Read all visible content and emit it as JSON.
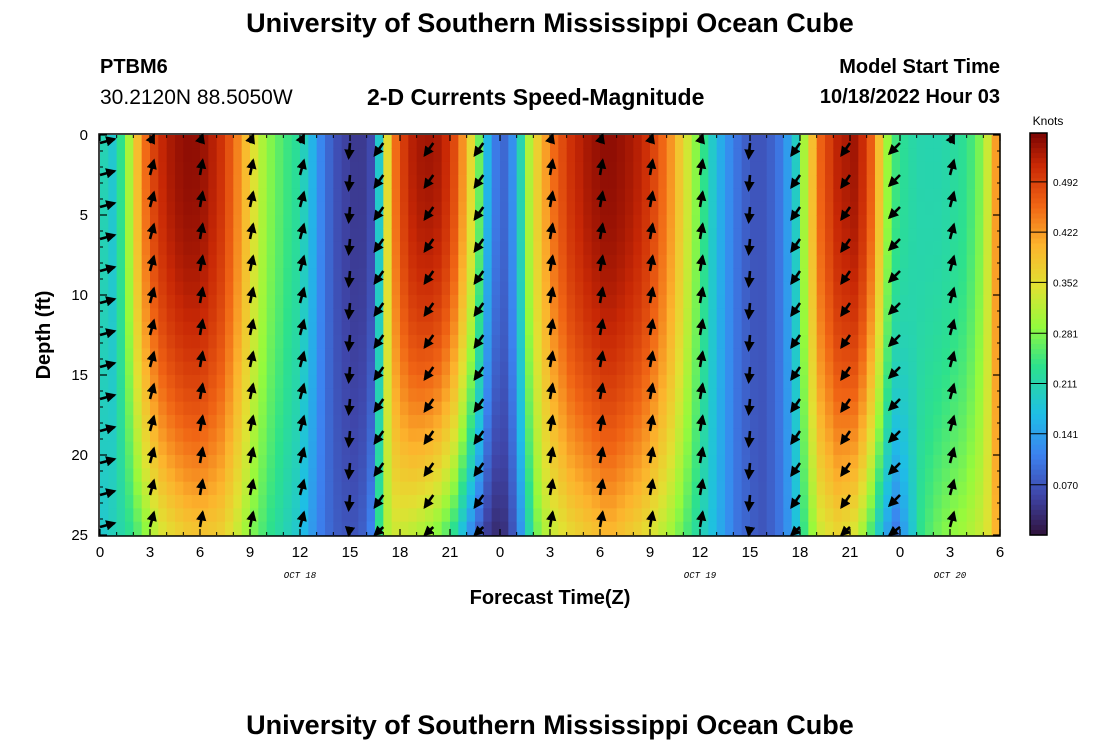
{
  "header": {
    "title": "University of Southern Mississippi Ocean Cube",
    "station": "PTBM6",
    "coords": "30.2120N  88.5050W",
    "subtitle": "2-D Currents Speed-Magnitude",
    "model_label": "Model Start Time",
    "model_time": "10/18/2022 Hour 03"
  },
  "footer": {
    "title": "University of Southern Mississippi Ocean Cube"
  },
  "chart_data": {
    "type": "heatmap",
    "title": "2-D Currents Speed-Magnitude",
    "xlabel": "Forecast Time(Z)",
    "ylabel": "Depth (ft)",
    "x_ticks": [
      "0",
      "3",
      "6",
      "9",
      "12",
      "15",
      "18",
      "21",
      "0",
      "3",
      "6",
      "9",
      "12",
      "15",
      "18",
      "21",
      "0",
      "3",
      "6"
    ],
    "x_tick_hours": [
      0,
      3,
      6,
      9,
      12,
      15,
      18,
      21,
      24,
      27,
      30,
      33,
      36,
      39,
      42,
      45,
      48,
      51,
      54
    ],
    "xlim": [
      0,
      54
    ],
    "date_labels": [
      {
        "text": "OCT 18",
        "hour": 12
      },
      {
        "text": "OCT 19",
        "hour": 36
      },
      {
        "text": "OCT 20",
        "hour": 51
      }
    ],
    "y_ticks": [
      0,
      5,
      10,
      15,
      20,
      25
    ],
    "ylim": [
      0,
      25
    ],
    "colorbar": {
      "label": "Knots",
      "ticks": [
        "0.070",
        "0.141",
        "0.211",
        "0.281",
        "0.352",
        "0.422",
        "0.492"
      ],
      "tick_values": [
        0.07,
        0.141,
        0.211,
        0.281,
        0.352,
        0.422,
        0.492
      ],
      "range": [
        0.0,
        0.56
      ]
    },
    "speed_profile": {
      "hours": [
        0,
        0.7,
        1.5,
        2.4,
        3.0,
        3.8,
        4.5,
        5.5,
        6.3,
        7.2,
        8.0,
        8.7,
        9.3,
        10.0,
        11.0,
        12.0,
        12.6,
        13.2,
        14.0,
        14.8,
        15.5,
        16.2,
        16.6,
        17.0,
        17.7,
        18.5,
        19.5,
        20.5,
        21.3,
        22.0,
        22.7,
        23.3,
        24.0,
        24.6,
        25.2,
        25.8,
        26.5,
        27.3,
        28.3,
        29.5,
        30.5,
        31.5,
        32.5,
        33.4,
        34.2,
        35.0,
        35.8,
        36.6,
        37.4,
        38.2,
        39.0,
        39.8,
        40.6,
        41.3,
        41.8,
        42.4,
        43.2,
        44.2,
        45.2,
        46.0,
        46.6,
        47.2,
        47.8,
        48.5,
        49.3,
        50.5,
        51.8,
        52.6,
        53.2,
        53.6,
        54.0
      ],
      "surface": [
        0.22,
        0.18,
        0.26,
        0.42,
        0.48,
        0.52,
        0.54,
        0.55,
        0.54,
        0.51,
        0.46,
        0.4,
        0.34,
        0.29,
        0.25,
        0.22,
        0.17,
        0.12,
        0.07,
        0.05,
        0.04,
        0.05,
        0.12,
        0.3,
        0.45,
        0.52,
        0.54,
        0.53,
        0.48,
        0.4,
        0.28,
        0.15,
        0.08,
        0.1,
        0.2,
        0.32,
        0.4,
        0.46,
        0.51,
        0.54,
        0.55,
        0.54,
        0.52,
        0.48,
        0.43,
        0.36,
        0.28,
        0.2,
        0.14,
        0.1,
        0.07,
        0.07,
        0.09,
        0.14,
        0.2,
        0.34,
        0.46,
        0.52,
        0.54,
        0.5,
        0.42,
        0.3,
        0.24,
        0.22,
        0.21,
        0.21,
        0.23,
        0.26,
        0.32,
        0.4,
        0.45
      ],
      "bottom": [
        0.18,
        0.2,
        0.22,
        0.26,
        0.3,
        0.34,
        0.36,
        0.38,
        0.38,
        0.37,
        0.34,
        0.3,
        0.27,
        0.24,
        0.21,
        0.18,
        0.14,
        0.11,
        0.08,
        0.07,
        0.07,
        0.1,
        0.2,
        0.3,
        0.33,
        0.32,
        0.3,
        0.27,
        0.22,
        0.14,
        0.08,
        0.04,
        0.02,
        0.05,
        0.12,
        0.22,
        0.3,
        0.33,
        0.36,
        0.38,
        0.4,
        0.38,
        0.36,
        0.33,
        0.3,
        0.26,
        0.22,
        0.18,
        0.14,
        0.1,
        0.08,
        0.07,
        0.09,
        0.13,
        0.18,
        0.26,
        0.33,
        0.36,
        0.34,
        0.28,
        0.2,
        0.14,
        0.1,
        0.16,
        0.24,
        0.28,
        0.3,
        0.32,
        0.34,
        0.38,
        0.44
      ]
    },
    "vectors": {
      "hours": [
        0,
        3,
        6,
        9,
        12,
        15,
        17,
        20,
        23,
        27,
        30,
        33,
        36,
        39,
        42,
        45,
        48,
        51
      ],
      "depths": [
        0.5,
        2.5,
        4.5,
        6.5,
        8.5,
        10.5,
        12.5,
        14.5,
        16.5,
        18.5,
        20.5,
        22.5,
        24.5
      ],
      "directions_deg": [
        75,
        15,
        10,
        12,
        15,
        185,
        215,
        215,
        215,
        10,
        10,
        10,
        10,
        185,
        215,
        215,
        225,
        15
      ]
    }
  }
}
